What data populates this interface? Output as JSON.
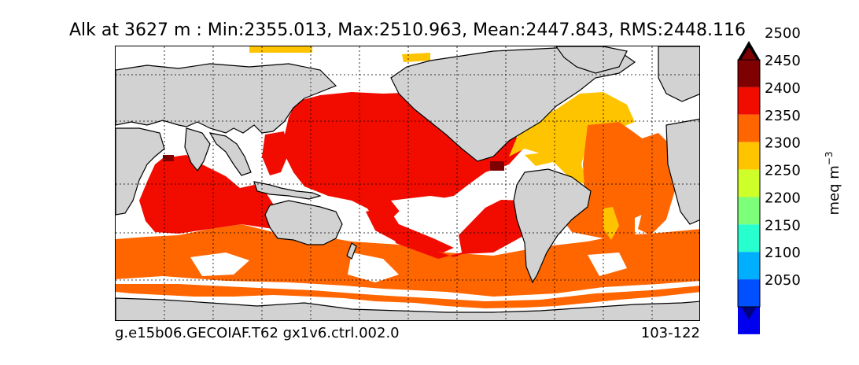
{
  "title": "Alk at 3627 m : Min:2355.013, Max:2510.963, Mean:2447.843, RMS:2448.116",
  "footer": {
    "case_name": "g.e15b06.GECOIAF.T62 gx1v6.ctrl.002.0",
    "years": "103-122"
  },
  "colorbar": {
    "unit_base": "meq m",
    "unit_exp": "−3",
    "ticks": [
      "2050",
      "2100",
      "2150",
      "2200",
      "2250",
      "2300",
      "2350",
      "2400",
      "2450",
      "2500"
    ],
    "colors": [
      "#00007f",
      "#0000ee",
      "#0050ff",
      "#00b0ff",
      "#28ffcf",
      "#7cff79",
      "#cfff28",
      "#ffc400",
      "#ff6600",
      "#f20c00",
      "#7f0000"
    ],
    "extend": "both"
  },
  "map": {
    "projection": "cylindrical",
    "land_color": "#d2d2d2",
    "gridlines": true,
    "field_colors": {
      "v2400_2450": "#ff6600",
      "v2450_2500": "#f20c00",
      "v2350_2400": "#ffc400",
      "v2500plus": "#7f0000",
      "missing": "#ffffff"
    }
  }
}
